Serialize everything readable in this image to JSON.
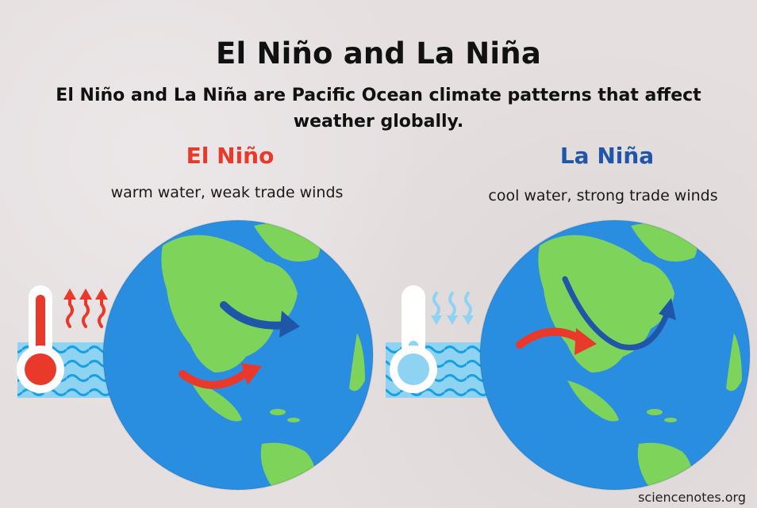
{
  "title": "El Niño and La Niña",
  "subtitle": "El Niño and La Niña are Pacific Ocean climate patterns that affect weather globally.",
  "el_nino": {
    "heading": "El Niño",
    "description": "warm water, weak trade winds",
    "color": "#e8392b",
    "thermometer": "hot-thermometer",
    "wind_arrows": "rising-heat-arrows"
  },
  "la_nina": {
    "heading": "La Niña",
    "description": "cool water, strong trade winds",
    "color": "#1f56a8",
    "thermometer": "cold-thermometer",
    "wind_arrows": "falling-cool-arrows"
  },
  "colors": {
    "ocean": "#2a8ee0",
    "land": "#7ed35a",
    "water_panel": "#8fd3f2",
    "wave": "#1a9fe0",
    "background": "#e5dfe0"
  },
  "credit": "sciencenotes.org"
}
